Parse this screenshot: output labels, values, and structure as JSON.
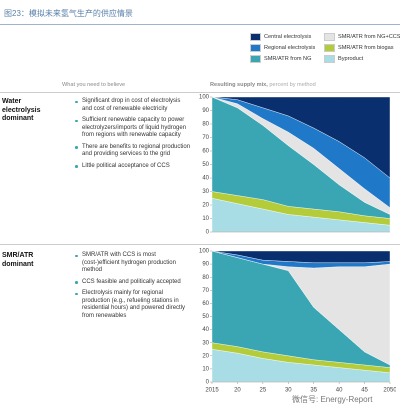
{
  "title": "图23：模拟未来氢气生产的供应情景",
  "column_headers": {
    "left": "What you need to believe",
    "right": "Resulting supply mix,",
    "right_note": "percent by method"
  },
  "scenarios": [
    {
      "label": "Water electrolysis dominant",
      "bullets": [
        "Significant drop in cost of electrolysis and cost of renewable electricity",
        "Sufficient renewable capacity to power electrolyzers/imports of liquid hydrogen from regions with renewable capacity",
        "There are benefits to regional production and providing services to the grid",
        "Little political acceptance of CCS"
      ]
    },
    {
      "label": "SMR/ATR dominant",
      "bullets": [
        "SMR/ATR with CCS is most (cost-)efficient hydrogen production method",
        "CCS feasible and politically accepted",
        "Electrolysis mainly for regional production (e.g., refueling stations in residential hours) and powered directly from renewables"
      ]
    }
  ],
  "watermark": "微信号: Energy-Report",
  "chart_data": [
    {
      "type": "stacked_area",
      "x": [
        2015,
        2020,
        2025,
        2030,
        2035,
        2040,
        2045,
        2050
      ],
      "xlim": [
        2015,
        2050
      ],
      "ylim": [
        0,
        100
      ],
      "yticks": [
        0,
        10,
        20,
        30,
        40,
        50,
        60,
        70,
        80,
        90,
        100
      ],
      "series": [
        {
          "name": "Byproduct",
          "color": "#a9dde6",
          "values": [
            25,
            21,
            17,
            13,
            11,
            9,
            7,
            5
          ]
        },
        {
          "name": "SMR/ATR from biogas",
          "color": "#b5cc3a",
          "values": [
            5,
            6,
            7,
            6,
            6,
            6,
            5,
            5
          ]
        },
        {
          "name": "SMR/ATR from NG",
          "color": "#3aa6b4",
          "values": [
            70,
            65,
            55,
            45,
            33,
            20,
            10,
            3
          ]
        },
        {
          "name": "SMR/ATR from NG+CCS",
          "color": "#e4e4e4",
          "values": [
            0,
            3,
            5,
            10,
            12,
            12,
            10,
            5
          ]
        },
        {
          "name": "Regional electrolysis",
          "color": "#1f78c8",
          "values": [
            0,
            3,
            8,
            12,
            15,
            20,
            23,
            22
          ]
        },
        {
          "name": "Central electrolysis",
          "color": "#0a2f6e",
          "values": [
            0,
            2,
            8,
            14,
            23,
            33,
            45,
            60
          ]
        }
      ]
    },
    {
      "type": "stacked_area",
      "x": [
        2015,
        2020,
        2025,
        2030,
        2035,
        2040,
        2045,
        2050
      ],
      "xlim": [
        2015,
        2050
      ],
      "ylim": [
        0,
        100
      ],
      "yticks": [
        0,
        10,
        20,
        30,
        40,
        50,
        60,
        70,
        80,
        90,
        100
      ],
      "xticks": [
        2015,
        {
          "value": 2020,
          "label": "20"
        },
        {
          "value": 2025,
          "label": "25"
        },
        {
          "value": 2030,
          "label": "30"
        },
        {
          "value": 2035,
          "label": "35"
        },
        {
          "value": 2040,
          "label": "40"
        },
        {
          "value": 2045,
          "label": "45"
        },
        2050
      ],
      "series": [
        {
          "values": [
            25,
            22,
            18,
            15,
            13,
            11,
            9,
            7
          ]
        },
        {
          "values": [
            5,
            5,
            5,
            5,
            4,
            4,
            4,
            4
          ]
        },
        {
          "values": [
            70,
            68,
            67,
            65,
            40,
            25,
            10,
            2
          ]
        },
        {
          "values": [
            0,
            0,
            0,
            3,
            30,
            48,
            65,
            77
          ]
        },
        {
          "values": [
            0,
            2,
            3,
            4,
            4,
            3,
            3,
            2
          ]
        },
        {
          "values": [
            0,
            3,
            7,
            8,
            9,
            9,
            9,
            8
          ]
        }
      ]
    }
  ]
}
